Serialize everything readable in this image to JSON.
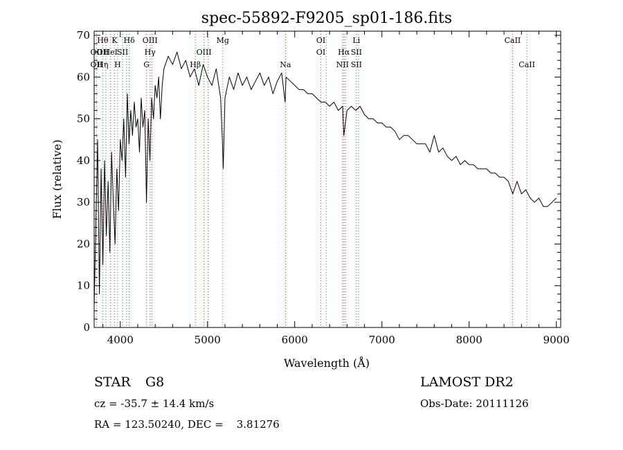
{
  "chart_data": {
    "type": "line",
    "title": "spec-55892-F9205_sp01-186.fits",
    "xlabel": "Wavelength (Å)",
    "ylabel": "Flux (relative)",
    "xlim": [
      3700,
      9050
    ],
    "ylim": [
      0,
      71
    ],
    "x_ticks": [
      4000,
      5000,
      6000,
      7000,
      8000,
      9000
    ],
    "y_ticks": [
      0,
      10,
      20,
      30,
      40,
      50,
      60,
      70
    ],
    "grid": false,
    "line_color": "#000000",
    "marker_color": "#e03030",
    "series": [
      {
        "x": [
          3700,
          3720,
          3740,
          3760,
          3780,
          3800,
          3820,
          3840,
          3860,
          3880,
          3900,
          3920,
          3940,
          3960,
          3980,
          4000,
          4020,
          4040,
          4060,
          4080,
          4100,
          4120,
          4140,
          4160,
          4180,
          4200,
          4220,
          4240,
          4260,
          4280,
          4300,
          4320,
          4340,
          4360,
          4380,
          4400,
          4420,
          4440,
          4460,
          4480,
          4500,
          4550,
          4600,
          4650,
          4700,
          4750,
          4800,
          4850,
          4900,
          4950,
          5000,
          5050,
          5100,
          5150,
          5170,
          5180,
          5200,
          5250,
          5300,
          5350,
          5400,
          5450,
          5500,
          5550,
          5600,
          5650,
          5700,
          5750,
          5800,
          5850,
          5890,
          5900,
          5950,
          6000,
          6050,
          6100,
          6150,
          6200,
          6250,
          6300,
          6350,
          6400,
          6450,
          6500,
          6550,
          6563,
          6600,
          6650,
          6700,
          6750,
          6800,
          6850,
          6900,
          6950,
          7000,
          7050,
          7100,
          7150,
          7200,
          7250,
          7300,
          7350,
          7400,
          7450,
          7500,
          7550,
          7600,
          7650,
          7700,
          7750,
          7800,
          7850,
          7900,
          7950,
          8000,
          8050,
          8100,
          8150,
          8200,
          8250,
          8300,
          8350,
          8400,
          8450,
          8500,
          8550,
          8600,
          8650,
          8700,
          8750,
          8800,
          8850,
          8900,
          8950,
          9000
        ],
        "y": [
          5,
          25,
          45,
          8,
          38,
          15,
          40,
          22,
          35,
          18,
          42,
          30,
          20,
          38,
          28,
          45,
          40,
          50,
          36,
          56,
          44,
          52,
          46,
          54,
          48,
          50,
          42,
          55,
          48,
          52,
          30,
          50,
          40,
          55,
          50,
          58,
          55,
          60,
          50,
          58,
          62,
          65,
          63,
          66,
          62,
          64,
          60,
          62,
          58,
          63,
          60,
          58,
          62,
          55,
          45,
          38,
          55,
          60,
          57,
          61,
          58,
          60,
          57,
          59,
          61,
          58,
          60,
          56,
          59,
          61,
          54,
          60,
          59,
          58,
          57,
          57,
          56,
          56,
          55,
          54,
          54,
          53,
          54,
          52,
          53,
          46,
          52,
          53,
          52,
          53,
          51,
          50,
          50,
          49,
          49,
          48,
          48,
          47,
          45,
          46,
          46,
          45,
          44,
          44,
          44,
          42,
          46,
          42,
          43,
          41,
          40,
          41,
          39,
          40,
          39,
          39,
          38,
          38,
          38,
          37,
          37,
          36,
          36,
          35,
          32,
          35,
          32,
          33,
          31,
          30,
          31,
          29,
          29,
          30,
          31
        ]
      }
    ],
    "line_markers": [
      {
        "x": 3727,
        "upper": "",
        "lower": "OII",
        "lower2": "OII"
      },
      {
        "x": 3798,
        "upper": "Hθ",
        "lower": "OII",
        "lower2": "Hη"
      },
      {
        "x": 3835,
        "upper": "",
        "lower": "",
        "lower2": ""
      },
      {
        "x": 3889,
        "upper": "",
        "lower": "HeI",
        "lower2": ""
      },
      {
        "x": 3934,
        "upper": "K",
        "lower": "",
        "lower2": ""
      },
      {
        "x": 3969,
        "upper": "",
        "lower": "",
        "lower2": "H"
      },
      {
        "x": 4026,
        "upper": "",
        "lower": "SII",
        "lower2": ""
      },
      {
        "x": 4072,
        "upper": "",
        "lower": "",
        "lower2": ""
      },
      {
        "x": 4102,
        "upper": "Hδ",
        "lower": "",
        "lower2": ""
      },
      {
        "x": 4300,
        "upper": "",
        "lower": "",
        "lower2": "G"
      },
      {
        "x": 4341,
        "upper": "OIII",
        "lower": "Hγ",
        "lower2": ""
      },
      {
        "x": 4363,
        "upper": "",
        "lower": "",
        "lower2": ""
      },
      {
        "x": 4861,
        "upper": "",
        "lower": "",
        "lower2": "Hβ"
      },
      {
        "x": 4959,
        "upper": "",
        "lower": "OIII",
        "lower2": ""
      },
      {
        "x": 5007,
        "upper": "",
        "lower": "",
        "lower2": ""
      },
      {
        "x": 5175,
        "upper": "Mg",
        "lower": "",
        "lower2": ""
      },
      {
        "x": 5894,
        "upper": "",
        "lower": "",
        "lower2": "Na"
      },
      {
        "x": 6300,
        "upper": "OI",
        "lower": "OI",
        "lower2": ""
      },
      {
        "x": 6364,
        "upper": "",
        "lower": "",
        "lower2": ""
      },
      {
        "x": 6548,
        "upper": "",
        "lower": "",
        "lower2": "NII"
      },
      {
        "x": 6563,
        "upper": "",
        "lower": "Hα",
        "lower2": ""
      },
      {
        "x": 6583,
        "upper": "",
        "lower": "",
        "lower2": ""
      },
      {
        "x": 6707,
        "upper": "Li",
        "lower": "SII",
        "lower2": "SII"
      },
      {
        "x": 6731,
        "upper": "",
        "lower": "",
        "lower2": ""
      },
      {
        "x": 8498,
        "upper": "CaII",
        "lower": "",
        "lower2": ""
      },
      {
        "x": 8662,
        "upper": "",
        "lower": "",
        "lower2": "CaII"
      }
    ]
  },
  "info": {
    "object_class": "STAR",
    "subclass": "G8",
    "survey": "LAMOST DR2",
    "redshift": "cz = -35.7 ± 14.4 km/s",
    "obs_date": "Obs-Date: 20111126",
    "coords": "RA = 123.50240, DEC =    3.81276"
  }
}
